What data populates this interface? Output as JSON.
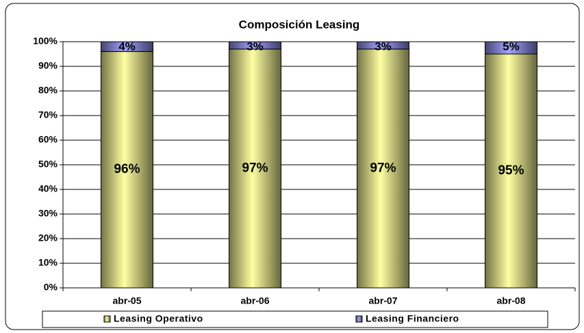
{
  "chart_data": {
    "type": "stacked_bar",
    "title": "Composición Leasing",
    "categories": [
      "abr-05",
      "abr-06",
      "abr-07",
      "abr-08"
    ],
    "series": [
      {
        "name": "Leasing Operativo",
        "color": "#ffff99",
        "values": [
          96,
          97,
          97,
          95
        ],
        "value_labels": [
          "96%",
          "97%",
          "97%",
          "95%"
        ]
      },
      {
        "name": "Leasing Financiero",
        "color": "#9999ff",
        "values": [
          4,
          3,
          3,
          5
        ],
        "value_labels": [
          "4%",
          "3%",
          "3%",
          "5%"
        ]
      }
    ],
    "ylim": [
      0,
      100
    ],
    "yticks": [
      {
        "value": 0,
        "label": "0%"
      },
      {
        "value": 10,
        "label": "10%"
      },
      {
        "value": 20,
        "label": "20%"
      },
      {
        "value": 30,
        "label": "30%"
      },
      {
        "value": 40,
        "label": "40%"
      },
      {
        "value": 50,
        "label": "50%"
      },
      {
        "value": 60,
        "label": "60%"
      },
      {
        "value": 70,
        "label": "70%"
      },
      {
        "value": 80,
        "label": "80%"
      },
      {
        "value": 90,
        "label": "90%"
      },
      {
        "value": 100,
        "label": "100%"
      }
    ],
    "grid": true,
    "legend": "bottom"
  }
}
